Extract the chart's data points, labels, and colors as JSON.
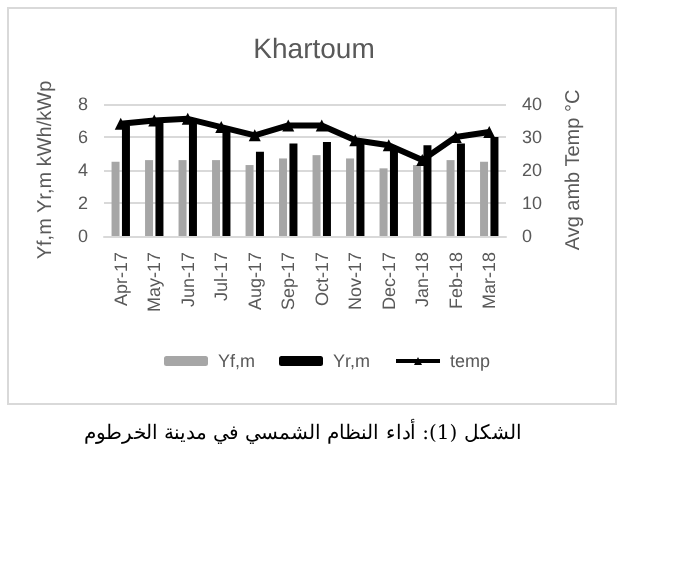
{
  "chart_data": {
    "type": "bar",
    "title": "Khartoum",
    "categories": [
      "Apr-17",
      "May-17",
      "Jun-17",
      "Jul-17",
      "Aug-17",
      "Sep-17",
      "Oct-17",
      "Nov-17",
      "Dec-17",
      "Jan-18",
      "Feb-18",
      "Mar-18"
    ],
    "series": [
      {
        "name": "Yf,m",
        "color": "#a6a6a6",
        "values": [
          4.5,
          4.6,
          4.6,
          4.6,
          4.3,
          4.7,
          4.9,
          4.7,
          4.1,
          4.3,
          4.6,
          4.5
        ]
      },
      {
        "name": "Yr,m",
        "color": "#000000",
        "values": [
          6.7,
          6.9,
          7.0,
          6.5,
          5.1,
          5.6,
          5.7,
          5.6,
          5.3,
          5.5,
          5.6,
          6.0
        ]
      },
      {
        "name": "temp",
        "type": "line",
        "axis": "y2",
        "color": "#000000",
        "marker": "triangle",
        "values": [
          34,
          35,
          35.5,
          33,
          30.5,
          33.5,
          33.5,
          29,
          27.5,
          23,
          30,
          31.5
        ]
      }
    ],
    "ylabel": "Yf,m Yr,m kWh/kWp",
    "y2label": "Avg amb Temp °C",
    "ylim": [
      0,
      8
    ],
    "yticks": [
      0,
      2,
      4,
      6,
      8
    ],
    "y2lim": [
      0,
      40
    ],
    "y2ticks": [
      0,
      10,
      20,
      30,
      40
    ],
    "grid": "y",
    "legend": "bottom",
    "annotations": [
      "الشكل (1): أداء النظام الشمسي في مدينة الخرطوم"
    ]
  }
}
